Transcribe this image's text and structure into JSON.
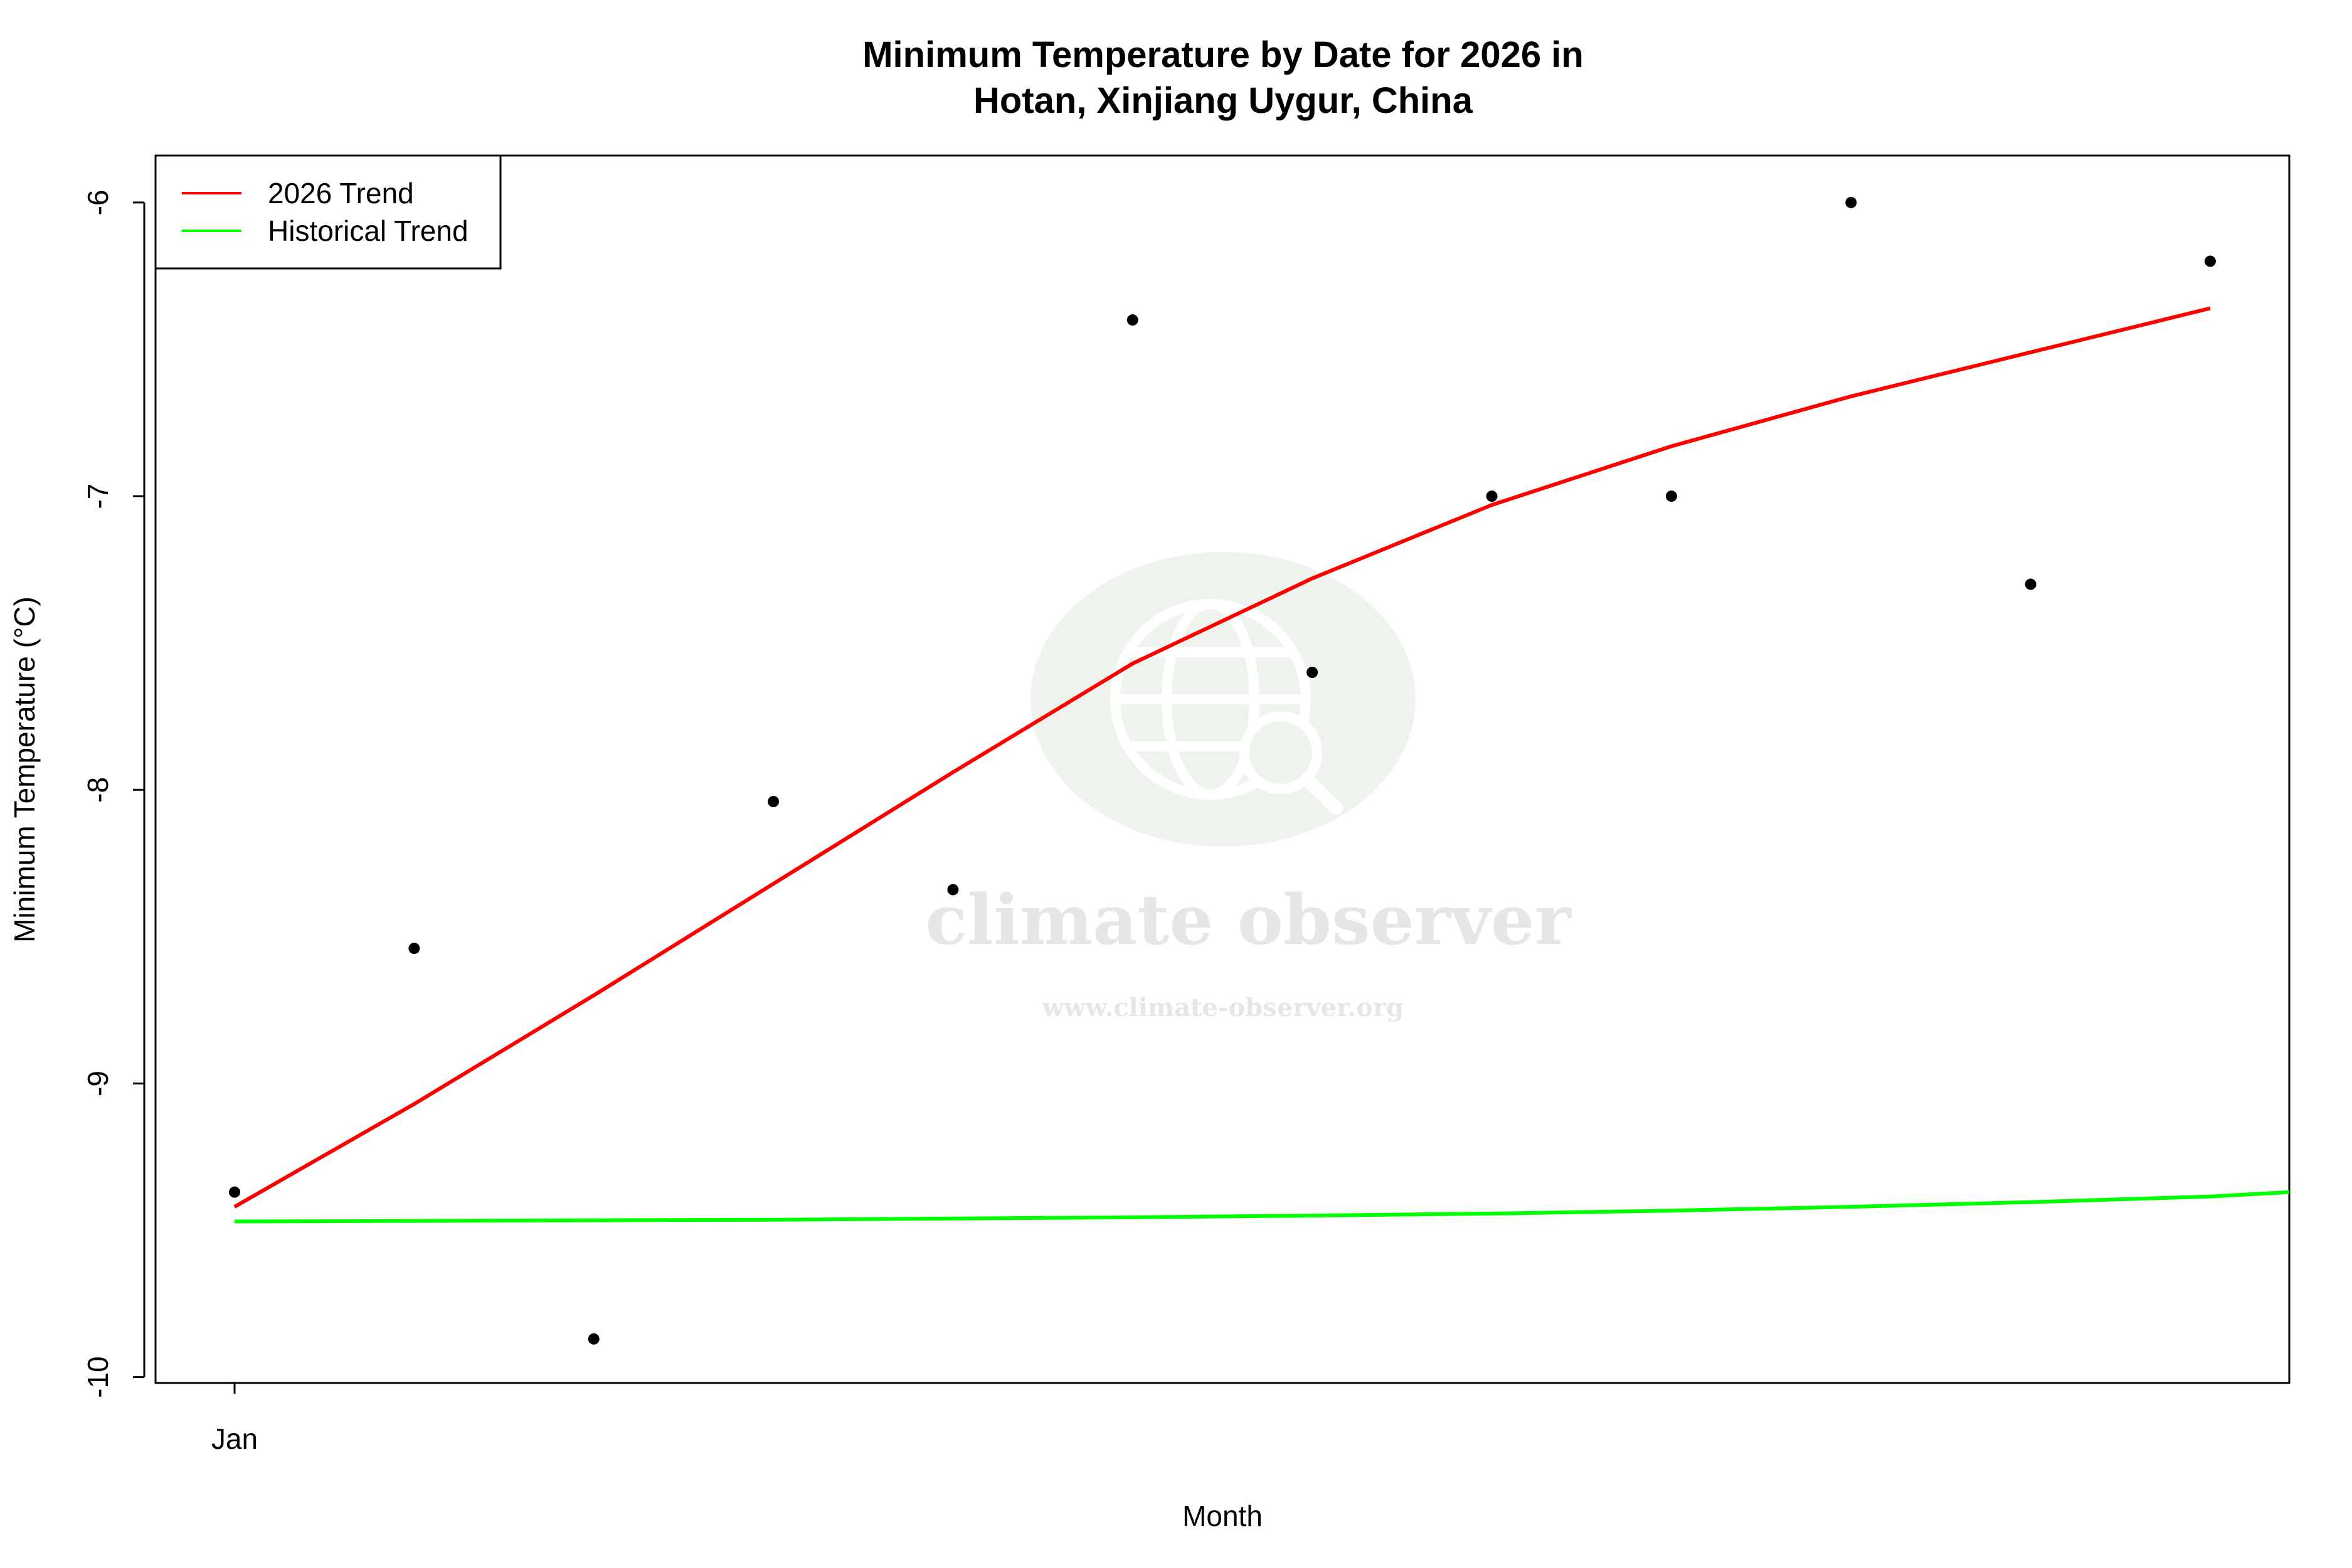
{
  "chart_data": {
    "type": "scatter",
    "title_line1": "Minimum Temperature by Date for 2026 in",
    "title_line2": "Hotan, Xinjiang Uygur, China",
    "xlabel": "Month",
    "ylabel": "Minimum Temperature (°C)",
    "x_ticks": [
      {
        "x": 1,
        "label": "Jan"
      }
    ],
    "y_ticks": [
      -10,
      -9,
      -8,
      -7,
      -6
    ],
    "y_tick_labels": [
      "-10",
      "-9",
      "-8",
      "-7",
      "-6"
    ],
    "xlim": [
      0.56,
      12.44
    ],
    "ylim": [
      -10.02,
      -5.84
    ],
    "points": [
      {
        "x": 1,
        "y": -9.37
      },
      {
        "x": 2,
        "y": -8.54
      },
      {
        "x": 3,
        "y": -9.87
      },
      {
        "x": 4,
        "y": -8.04
      },
      {
        "x": 5,
        "y": -8.34
      },
      {
        "x": 6,
        "y": -6.4
      },
      {
        "x": 7,
        "y": -7.6
      },
      {
        "x": 8,
        "y": -7.0
      },
      {
        "x": 9,
        "y": -7.0
      },
      {
        "x": 10,
        "y": -6.0
      },
      {
        "x": 11,
        "y": -7.3
      },
      {
        "x": 12,
        "y": -6.2
      }
    ],
    "series": [
      {
        "name": "2026 Trend",
        "color": "#ff0000",
        "x": [
          1,
          2,
          3,
          4,
          5,
          6,
          7,
          8,
          9,
          10,
          11,
          12
        ],
        "values": [
          -9.42,
          -9.07,
          -8.7,
          -8.32,
          -7.94,
          -7.57,
          -7.28,
          -7.03,
          -6.83,
          -6.66,
          -6.51,
          -6.36
        ]
      },
      {
        "name": "Historical Trend",
        "color": "#00ff00",
        "x": [
          1,
          2,
          3,
          4,
          5,
          6,
          7,
          8,
          9,
          10,
          11,
          12,
          12.44
        ],
        "values": [
          -9.47,
          -9.468,
          -9.466,
          -9.464,
          -9.46,
          -9.456,
          -9.45,
          -9.443,
          -9.433,
          -9.42,
          -9.404,
          -9.385,
          -9.37
        ]
      }
    ],
    "legend_position": "top-left",
    "point_color": "#000000",
    "grid": false
  },
  "watermark": {
    "name": "climate observer",
    "url": "www.climate-observer.org"
  }
}
